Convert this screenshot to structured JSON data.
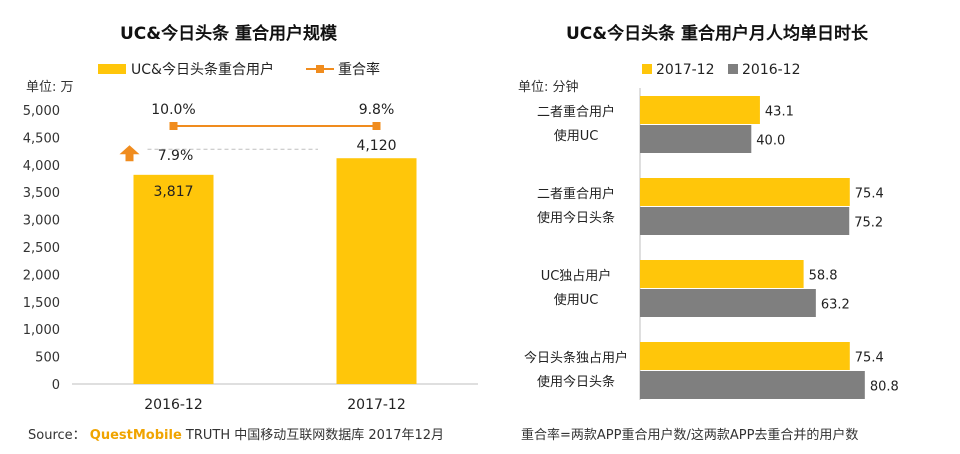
{
  "colors": {
    "gold": "#FFC60A",
    "gray": "#7F7F7F",
    "orange": "#F08C1E",
    "brand": "#F0A400",
    "axis": "#BFBFBF",
    "dashed": "#BFBFBF"
  },
  "chart_data": [
    {
      "type": "bar",
      "title": "UC&今日头条 重合用户规模",
      "unit_label": "单位: 万",
      "categories": [
        "2016-12",
        "2017-12"
      ],
      "ylim": [
        0,
        5000
      ],
      "y_ticks": [
        "0",
        "500",
        "1,000",
        "1,500",
        "2,000",
        "2,500",
        "3,000",
        "3,500",
        "4,000",
        "4,500",
        "5,000"
      ],
      "legend_placement": "top",
      "series": [
        {
          "name": "UC&今日头条重合用户",
          "values": [
            3817,
            4120
          ],
          "labels": [
            "3,817",
            "4,120"
          ]
        }
      ],
      "overlap_rate": {
        "name": "重合率",
        "values": [
          10.0,
          9.8
        ],
        "labels": [
          "10.0%",
          "9.8%"
        ]
      },
      "growth_annotation": {
        "label": "7.9%",
        "icon": "up-arrow-icon"
      }
    },
    {
      "type": "bar",
      "orientation": "horizontal",
      "title": "UC&今日头条 重合用户月人均单日时长",
      "unit_label": "单位: 分钟",
      "categories": [
        [
          "二者重合用户",
          "使用UC"
        ],
        [
          "二者重合用户",
          "使用今日头条"
        ],
        [
          "UC独占用户",
          "使用UC"
        ],
        [
          "今日头条独占用户",
          "使用今日头条"
        ]
      ],
      "xlim": [
        0,
        100
      ],
      "legend_placement": "top",
      "series": [
        {
          "name": "2017-12",
          "values": [
            43.1,
            75.4,
            58.8,
            75.4
          ],
          "labels": [
            "43.1",
            "75.4",
            "58.8",
            "75.4"
          ]
        },
        {
          "name": "2016-12",
          "values": [
            40.0,
            75.2,
            63.2,
            80.8
          ],
          "labels": [
            "40.0",
            "75.2",
            "63.2",
            "80.8"
          ]
        }
      ]
    }
  ],
  "footer": {
    "source_prefix": "Source：",
    "brand": "QuestMobile",
    "source_rest": "TRUTH 中国移动互联网数据库 2017年12月",
    "note": "重合率=两款APP重合用户数/这两款APP去重合并的用户数"
  }
}
